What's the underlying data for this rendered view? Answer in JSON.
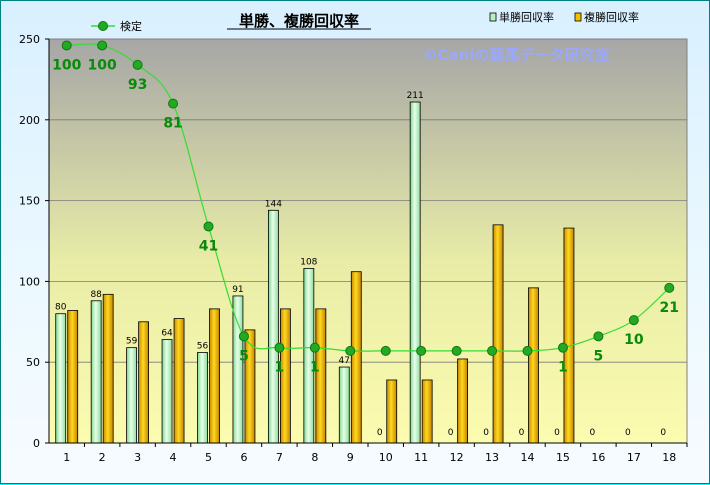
{
  "chart_data": {
    "type": "bar",
    "title": "単勝、複勝回収率",
    "watermark": "©Caniの競馬データ研究室",
    "categories": [
      "1",
      "2",
      "3",
      "4",
      "5",
      "6",
      "7",
      "8",
      "9",
      "10",
      "11",
      "12",
      "13",
      "14",
      "15",
      "16",
      "17",
      "18"
    ],
    "ylim": [
      0,
      250
    ],
    "yticks": [
      0,
      50,
      100,
      150,
      200,
      250
    ],
    "grid": true,
    "legend_position": "top-right",
    "series": [
      {
        "name": "単勝回収率",
        "type": "bar",
        "color": "#b8f0c0",
        "values": [
          80,
          88,
          59,
          64,
          56,
          91,
          144,
          108,
          47,
          0,
          211,
          0,
          0,
          0,
          0,
          0,
          0,
          0
        ],
        "labels": [
          "80",
          "88",
          "59",
          "64",
          "56",
          "91",
          "144",
          "108",
          "47",
          "0",
          "211",
          "0",
          "0",
          "0",
          "0",
          "0",
          "0",
          "0"
        ]
      },
      {
        "name": "複勝回収率",
        "type": "bar",
        "color": "#f5c000",
        "values": [
          82,
          92,
          75,
          77,
          83,
          70,
          83,
          83,
          106,
          39,
          39,
          52,
          135,
          96,
          133,
          0,
          0,
          0
        ]
      },
      {
        "name": "検定",
        "type": "line",
        "color": "#22cc22",
        "values": [
          246,
          246,
          234,
          210,
          134,
          66,
          59,
          59,
          57,
          57,
          57,
          57,
          57,
          57,
          59,
          66,
          76,
          96
        ],
        "labels": [
          "100",
          "100",
          "93",
          "81",
          "41",
          "5",
          "1",
          "1",
          "",
          "",
          "",
          "",
          "",
          "",
          "1",
          "5",
          "10",
          "21"
        ]
      }
    ]
  }
}
